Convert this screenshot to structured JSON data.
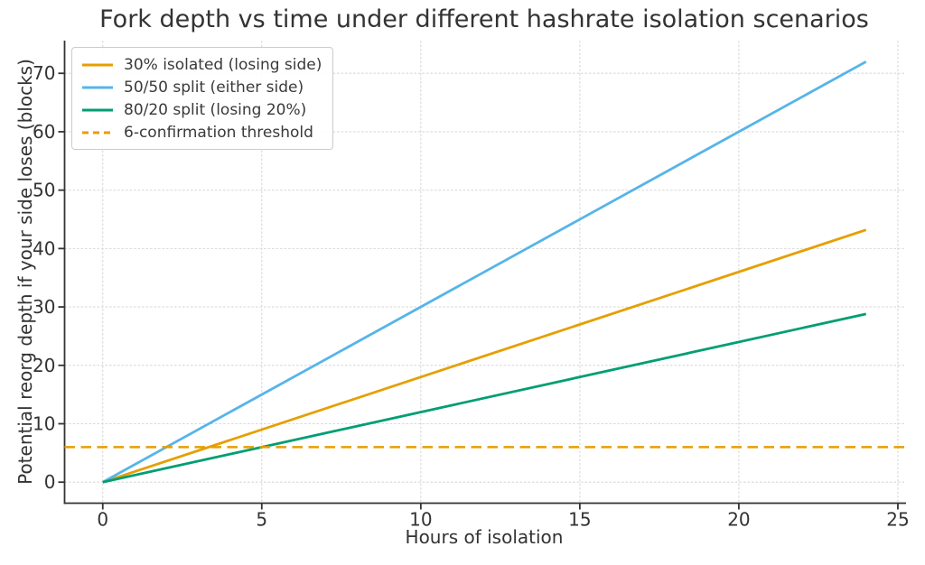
{
  "chart_data": {
    "type": "line",
    "title": "Fork depth vs time under different hashrate isolation scenarios",
    "xlabel": "Hours of isolation",
    "ylabel": "Potential reorg depth if your side loses (blocks)",
    "xlim": [
      -1.2,
      25.2
    ],
    "ylim": [
      -3.6,
      75.6
    ],
    "xticks": [
      0,
      5,
      10,
      15,
      20,
      25
    ],
    "yticks": [
      0,
      10,
      20,
      30,
      40,
      50,
      60,
      70
    ],
    "grid": true,
    "grid_style": "dashed",
    "legend_position": "upper left",
    "series": [
      {
        "name": "30% isolated (losing side)",
        "color": "#E69F00",
        "line_style": "solid",
        "x": [
          0,
          24
        ],
        "y": [
          0,
          43.2
        ]
      },
      {
        "name": "50/50 split (either side)",
        "color": "#56B4E9",
        "line_style": "solid",
        "x": [
          0,
          24
        ],
        "y": [
          0,
          72
        ]
      },
      {
        "name": "80/20 split (losing 20%)",
        "color": "#009E73",
        "line_style": "solid",
        "x": [
          0,
          24
        ],
        "y": [
          0,
          28.8
        ]
      },
      {
        "name": "6-confirmation threshold",
        "color": "#E69F00",
        "line_style": "dashed",
        "type": "hline",
        "y": 6
      }
    ],
    "colors": {
      "text": "#333333",
      "spine": "#333333",
      "grid": "#d9d9d9",
      "background": "#ffffff"
    }
  }
}
